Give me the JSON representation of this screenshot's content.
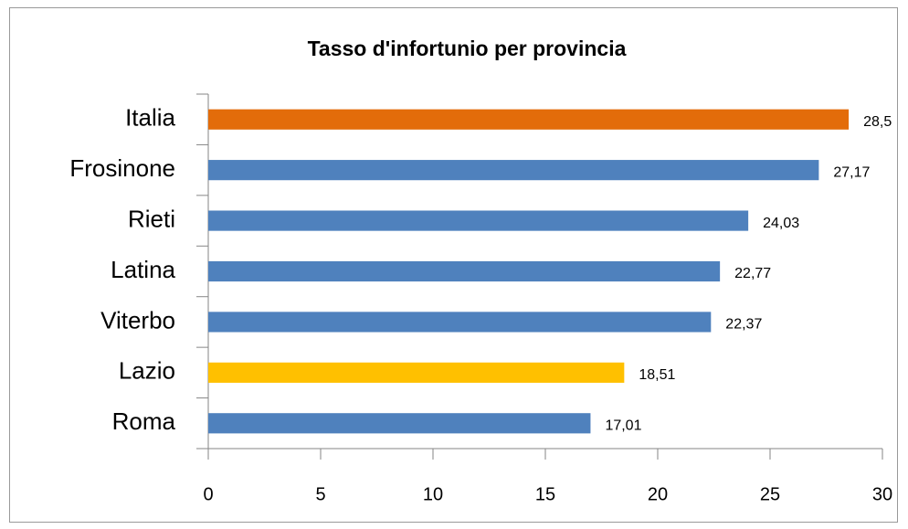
{
  "chart_data": {
    "type": "bar",
    "orientation": "horizontal",
    "title": "Tasso d'infortunio per provincia",
    "categories": [
      "Italia",
      "Frosinone",
      "Rieti",
      "Latina",
      "Viterbo",
      "Lazio",
      "Roma"
    ],
    "values": [
      28.5,
      27.17,
      24.03,
      22.77,
      22.37,
      18.51,
      17.01
    ],
    "value_labels": [
      "28,5",
      "27,17",
      "24,03",
      "22,77",
      "22,37",
      "18,51",
      "17,01"
    ],
    "colors": [
      "#e36c0a",
      "#4f81bd",
      "#4f81bd",
      "#4f81bd",
      "#4f81bd",
      "#ffc000",
      "#4f81bd"
    ],
    "xlim": [
      0,
      30
    ],
    "xticks": [
      0,
      5,
      10,
      15,
      20,
      25,
      30
    ],
    "grid": false
  }
}
